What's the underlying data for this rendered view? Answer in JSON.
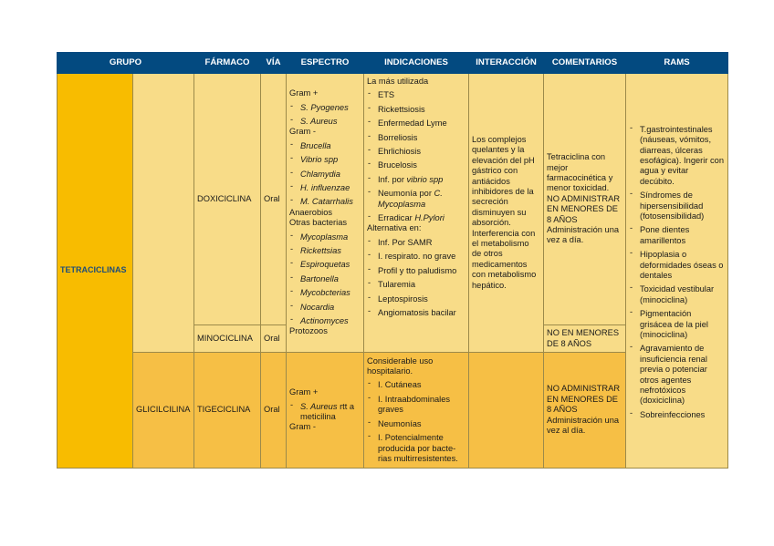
{
  "colors": {
    "header": "#034a80",
    "group": "#f8bc00",
    "light_row": "#f8dc88",
    "dark_row": "#f6bf45",
    "group_text": "#1f4e79"
  },
  "headers": [
    "GRUPO",
    "FÁRMACO",
    "VÍA",
    "ESPECTRO",
    "INDICACIONES",
    "INTERACCIÓN",
    "COMENTARIOS",
    "RAMS"
  ],
  "group": "TETRACICLINAS",
  "subgroup": "GLICILCILINA",
  "rows": [
    {
      "farmaco": "DOXICICLINA",
      "via": "Oral",
      "comentarios": [
        "Tetraciclina con mejor farmacocinética y menor toxicidad.",
        "NO ADMINISTRAR EN MENORES DE 8 AÑOS",
        "Administración una vez a día."
      ]
    },
    {
      "farmaco": "MINOCICLINA",
      "via": "Oral",
      "comentarios": [
        "NO EN MENORES DE 8 AÑOS"
      ]
    },
    {
      "farmaco": "TIGECICLINA",
      "via": "Oral",
      "comentarios": [
        "NO ADMINISTRAR EN MENORES DE 8 AÑOS",
        "Administración una vez al día."
      ]
    }
  ],
  "espectro_tetra": [
    {
      "text": "Gram +"
    },
    {
      "list": [
        [
          [
            "S. Pyogenes",
            true
          ]
        ],
        [
          [
            "S. Aureus",
            true
          ]
        ]
      ]
    },
    {
      "text": "Gram -"
    },
    {
      "list": [
        [
          [
            "Brucella",
            true
          ]
        ],
        [
          [
            "Vibrio spp",
            true
          ]
        ],
        [
          [
            "Chlamydia",
            true
          ]
        ],
        [
          [
            "H. influenzae",
            true
          ]
        ],
        [
          [
            "M. Catarrhalis",
            true
          ]
        ]
      ]
    },
    {
      "text": "Anaerobios"
    },
    {
      "text": "Otras bacterias"
    },
    {
      "list": [
        [
          [
            "Mycoplasma",
            true
          ]
        ],
        [
          [
            "Rickettsias",
            true
          ]
        ],
        [
          [
            "Espiroquetas",
            true
          ]
        ],
        [
          [
            "Bartonella",
            true
          ]
        ],
        [
          [
            "Mycobcterias",
            true
          ]
        ],
        [
          [
            "Nocardia",
            true
          ]
        ],
        [
          [
            "Actinomyces",
            true
          ]
        ]
      ]
    },
    {
      "text": "Protozoos"
    }
  ],
  "indicaciones_tetra": [
    {
      "text": "La más utilizada"
    },
    {
      "list": [
        [
          [
            "ETS",
            false
          ]
        ],
        [
          [
            "Rickettsiosis",
            false
          ]
        ],
        [
          [
            "Enfermedad Lyme",
            false
          ]
        ],
        [
          [
            "Borreliosis",
            false
          ]
        ],
        [
          [
            "Ehrlichiosis",
            false
          ]
        ],
        [
          [
            "Brucelosis",
            false
          ]
        ],
        [
          [
            "Inf. por ",
            false
          ],
          [
            "vibrio spp",
            true
          ]
        ],
        [
          [
            "Neumonía por ",
            false
          ],
          [
            "C. Mycoplasma",
            true
          ]
        ],
        [
          [
            "Erradicar ",
            false
          ],
          [
            "H.Pylori",
            true
          ]
        ]
      ]
    },
    {
      "text": "Alternativa en:"
    },
    {
      "list": [
        [
          [
            "Inf. Por SAMR",
            false
          ]
        ],
        [
          [
            "I. respirato. no grave",
            false
          ]
        ],
        [
          [
            "Profil y tto paludismo",
            false
          ]
        ],
        [
          [
            "Tularemia",
            false
          ]
        ],
        [
          [
            "Leptospirosis",
            false
          ]
        ],
        [
          [
            "Angiomatosis bacilar",
            false
          ]
        ]
      ]
    }
  ],
  "interaccion_tetra": "Los complejos quelantes y la elevación del pH gástrico con antiácidos inhibidores de la secreción disminuyen su absorción. Interferencia con el metabolismo de otros medicamentos con metabolismo hepático.",
  "espectro_tige": [
    {
      "text": "Gram +"
    },
    {
      "list": [
        [
          [
            "S. Aureus",
            true
          ],
          [
            " rtt a meticilina",
            false
          ]
        ]
      ]
    },
    {
      "text": "Gram -"
    }
  ],
  "indicaciones_tige": [
    {
      "text": "Considerable uso hospitalario."
    },
    {
      "list": [
        [
          [
            "I. Cutáneas",
            false
          ]
        ],
        [
          [
            "I. Intraabdominales graves",
            false
          ]
        ],
        [
          [
            "Neumonías",
            false
          ]
        ],
        [
          [
            "I. Potencialmente producida por bacte-rias multirresistentes.",
            false
          ]
        ]
      ]
    }
  ],
  "rams": [
    {
      "list": [
        [
          [
            "T.gastrointestinales (náuseas, vómitos, diarreas, úlceras esofágica). Ingerir con agua y evitar decúbito.",
            false
          ]
        ],
        [
          [
            "Síndromes de hipersensibilidad (fotosensibilidad)",
            false
          ]
        ],
        [
          [
            "Pone dientes amarillentos",
            false
          ]
        ],
        [
          [
            "Hipoplasia o deformidades óseas o dentales",
            false
          ]
        ],
        [
          [
            "Toxicidad vestibular (minociclina)",
            false
          ]
        ],
        [
          [
            "Pigmentación grisácea de la piel (minociclina)",
            false
          ]
        ],
        [
          [
            "Agravamiento de insuficiencia renal previa o potenciar otros agentes nefrotóxicos (doxiciclina)",
            false
          ]
        ],
        [
          [
            "Sobreinfecciones",
            false
          ]
        ]
      ]
    }
  ]
}
